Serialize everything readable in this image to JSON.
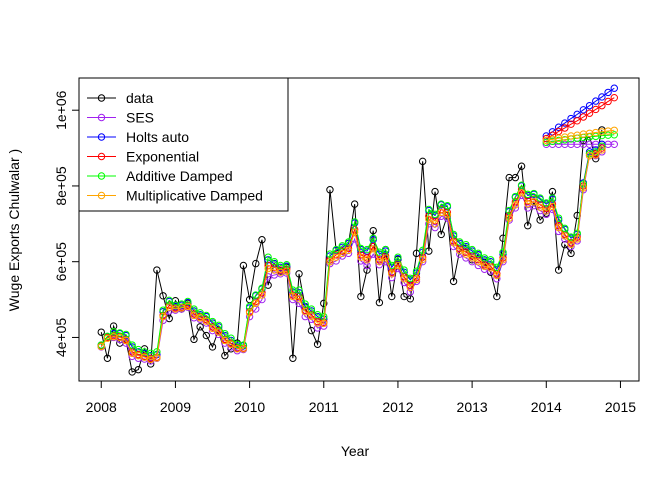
{
  "chart_data": {
    "type": "line",
    "title": "",
    "xlabel": "Year",
    "ylabel": "Wuge Exports Chulwalar  )",
    "xlim": [
      2007.7,
      2015.25
    ],
    "ylim": [
      285000,
      1085000
    ],
    "x_ticks": [
      2008,
      2009,
      2010,
      2011,
      2012,
      2013,
      2014,
      2015
    ],
    "x_tick_labels": [
      "2008",
      "2009",
      "2010",
      "2011",
      "2012",
      "2013",
      "2014",
      "2015"
    ],
    "y_ticks": [
      400000,
      600000,
      800000,
      1000000
    ],
    "y_tick_labels": [
      "4e+05",
      "6e+05",
      "8e+05",
      "1e+06"
    ],
    "grid": false,
    "legend_position": "top-left",
    "series": [
      {
        "name": "data",
        "color": "#000000",
        "x_start": 2008.0,
        "step": 0.083333,
        "values": [
          414000,
          345000,
          430000,
          385000,
          392000,
          309000,
          315000,
          370000,
          330000,
          578000,
          510000,
          450000,
          497000,
          475000,
          490000,
          395000,
          428000,
          405000,
          375000,
          420000,
          352000,
          370000,
          385000,
          590000,
          500000,
          595000,
          658000,
          538000,
          595000,
          575000,
          585000,
          345000,
          568000,
          480000,
          418000,
          382000,
          490000,
          790000,
          630000,
          628000,
          648000,
          752000,
          508000,
          578000,
          682000,
          492000,
          632000,
          508000,
          606000,
          508000,
          502000,
          622000,
          865000,
          628000,
          785000,
          672000,
          722000,
          548000,
          630000,
          635000,
          605000,
          618000,
          598000,
          572000,
          508000,
          662000,
          822000,
          822000,
          852000,
          695000,
          758000,
          710000,
          728000,
          785000,
          578000,
          645000,
          622000,
          722000,
          920000,
          930000,
          872000,
          948000
        ]
      },
      {
        "name": "SES",
        "color": "#a020f0",
        "x_start": 2008.0,
        "step": 0.083333,
        "values": [
          375000,
          400000,
          400000,
          395000,
          385000,
          350000,
          345000,
          343000,
          338000,
          345000,
          445000,
          470000,
          472000,
          475000,
          480000,
          452000,
          448000,
          438000,
          418000,
          408000,
          385000,
          375000,
          365000,
          368000,
          455000,
          475000,
          500000,
          560000,
          565000,
          568000,
          570000,
          500000,
          490000,
          455000,
          448000,
          425000,
          430000,
          595000,
          602000,
          615000,
          622000,
          660000,
          602000,
          590000,
          620000,
          592000,
          600000,
          558000,
          582000,
          545000,
          520000,
          548000,
          600000,
          700000,
          690000,
          720000,
          715000,
          640000,
          620000,
          610000,
          600000,
          590000,
          580000,
          575000,
          555000,
          600000,
          710000,
          742000,
          775000,
          742000,
          748000,
          735000,
          725000,
          738000,
          680000,
          660000,
          640000,
          655000,
          790000,
          880000,
          880000,
          890000
        ],
        "forecast_x_start": 2014.0,
        "forecast_step": 0.083333,
        "forecast_values": [
          910000,
          910000,
          910000,
          910000,
          910000,
          910000,
          910000,
          910000,
          910000,
          910000,
          910000,
          910000
        ]
      },
      {
        "name": "Holts auto",
        "color": "#0000ff",
        "x_start": 2008.0,
        "step": 0.083333,
        "values": [
          380000,
          402000,
          410000,
          410000,
          405000,
          375000,
          362000,
          358000,
          352000,
          355000,
          468000,
          495000,
          482000,
          485000,
          492000,
          470000,
          460000,
          455000,
          438000,
          428000,
          405000,
          392000,
          378000,
          378000,
          478000,
          510000,
          528000,
          605000,
          595000,
          585000,
          588000,
          520000,
          518000,
          482000,
          470000,
          455000,
          448000,
          615000,
          630000,
          638000,
          648000,
          702000,
          632000,
          628000,
          658000,
          620000,
          628000,
          585000,
          608000,
          572000,
          552000,
          570000,
          625000,
          735000,
          722000,
          750000,
          745000,
          668000,
          648000,
          640000,
          628000,
          618000,
          605000,
          600000,
          580000,
          620000,
          732000,
          770000,
          800000,
          775000,
          778000,
          765000,
          752000,
          765000,
          710000,
          685000,
          662000,
          672000,
          808000,
          890000,
          895000,
          910000
        ],
        "forecast_x_start": 2014.0,
        "forecast_step": 0.083333,
        "forecast_values": [
          932000,
          943000,
          955000,
          966000,
          978000,
          989000,
          1001000,
          1012000,
          1024000,
          1035000,
          1047000,
          1058000
        ]
      },
      {
        "name": "Exponential",
        "color": "#ff0000",
        "x_start": 2008.0,
        "step": 0.083333,
        "values": [
          378000,
          400000,
          405000,
          402000,
          395000,
          362000,
          355000,
          350000,
          345000,
          348000,
          458000,
          485000,
          478000,
          480000,
          485000,
          462000,
          455000,
          447000,
          428000,
          418000,
          395000,
          385000,
          372000,
          372000,
          468000,
          495000,
          518000,
          590000,
          585000,
          578000,
          580000,
          512000,
          508000,
          472000,
          460000,
          442000,
          440000,
          605000,
          618000,
          628000,
          635000,
          685000,
          618000,
          610000,
          640000,
          605000,
          615000,
          572000,
          595000,
          560000,
          538000,
          558000,
          612000,
          720000,
          708000,
          738000,
          730000,
          655000,
          635000,
          625000,
          615000,
          605000,
          592000,
          588000,
          568000,
          610000,
          722000,
          758000,
          790000,
          760000,
          765000,
          750000,
          740000,
          752000,
          695000,
          672000,
          650000,
          665000,
          800000,
          885000,
          885000,
          900000
        ],
        "forecast_x_start": 2014.0,
        "forecast_step": 0.083333,
        "forecast_values": [
          925000,
          934000,
          944000,
          953000,
          963000,
          972000,
          982000,
          992000,
          1002000,
          1012000,
          1023000,
          1033000
        ]
      },
      {
        "name": "Additive Damped",
        "color": "#00ff00",
        "x_start": 2008.0,
        "step": 0.083333,
        "values": [
          380000,
          403000,
          415000,
          412000,
          408000,
          380000,
          368000,
          362000,
          358000,
          362000,
          472000,
          498000,
          485000,
          488000,
          495000,
          475000,
          465000,
          458000,
          442000,
          432000,
          410000,
          398000,
          382000,
          380000,
          482000,
          512000,
          530000,
          612000,
          600000,
          590000,
          592000,
          525000,
          525000,
          488000,
          475000,
          460000,
          455000,
          620000,
          632000,
          642000,
          652000,
          705000,
          635000,
          632000,
          662000,
          625000,
          632000,
          590000,
          612000,
          578000,
          556000,
          575000,
          630000,
          738000,
          725000,
          752000,
          748000,
          672000,
          652000,
          645000,
          632000,
          622000,
          610000,
          605000,
          585000,
          625000,
          735000,
          772000,
          802000,
          778000,
          780000,
          768000,
          755000,
          768000,
          715000,
          688000,
          665000,
          675000,
          805000,
          885000,
          890000,
          905000
        ],
        "forecast_x_start": 2014.0,
        "forecast_step": 0.083333,
        "forecast_values": [
          915000,
          918000,
          920000,
          922000,
          924000,
          926000,
          928000,
          930000,
          931000,
          933000,
          934000,
          935000
        ]
      },
      {
        "name": "Multiplicative Damped",
        "color": "#ffa500",
        "x_start": 2008.0,
        "step": 0.083333,
        "values": [
          376000,
          398000,
          402000,
          400000,
          392000,
          358000,
          352000,
          348000,
          342000,
          346000,
          455000,
          480000,
          475000,
          478000,
          482000,
          458000,
          452000,
          443000,
          424000,
          414000,
          392000,
          382000,
          370000,
          370000,
          465000,
          490000,
          512000,
          582000,
          578000,
          572000,
          575000,
          508000,
          502000,
          468000,
          456000,
          438000,
          437000,
          600000,
          612000,
          622000,
          630000,
          678000,
          612000,
          605000,
          634000,
          600000,
          610000,
          568000,
          590000,
          555000,
          532000,
          553000,
          606000,
          712000,
          700000,
          730000,
          724000,
          650000,
          630000,
          620000,
          610000,
          600000,
          588000,
          584000,
          564000,
          605000,
          715000,
          750000,
          782000,
          753000,
          758000,
          744000,
          734000,
          746000,
          690000,
          668000,
          646000,
          660000,
          795000,
          880000,
          882000,
          895000
        ],
        "forecast_x_start": 2014.0,
        "forecast_step": 0.083333,
        "forecast_values": [
          920000,
          923000,
          926000,
          929000,
          932000,
          934000,
          937000,
          939000,
          941000,
          943000,
          945000,
          947000
        ]
      }
    ]
  }
}
